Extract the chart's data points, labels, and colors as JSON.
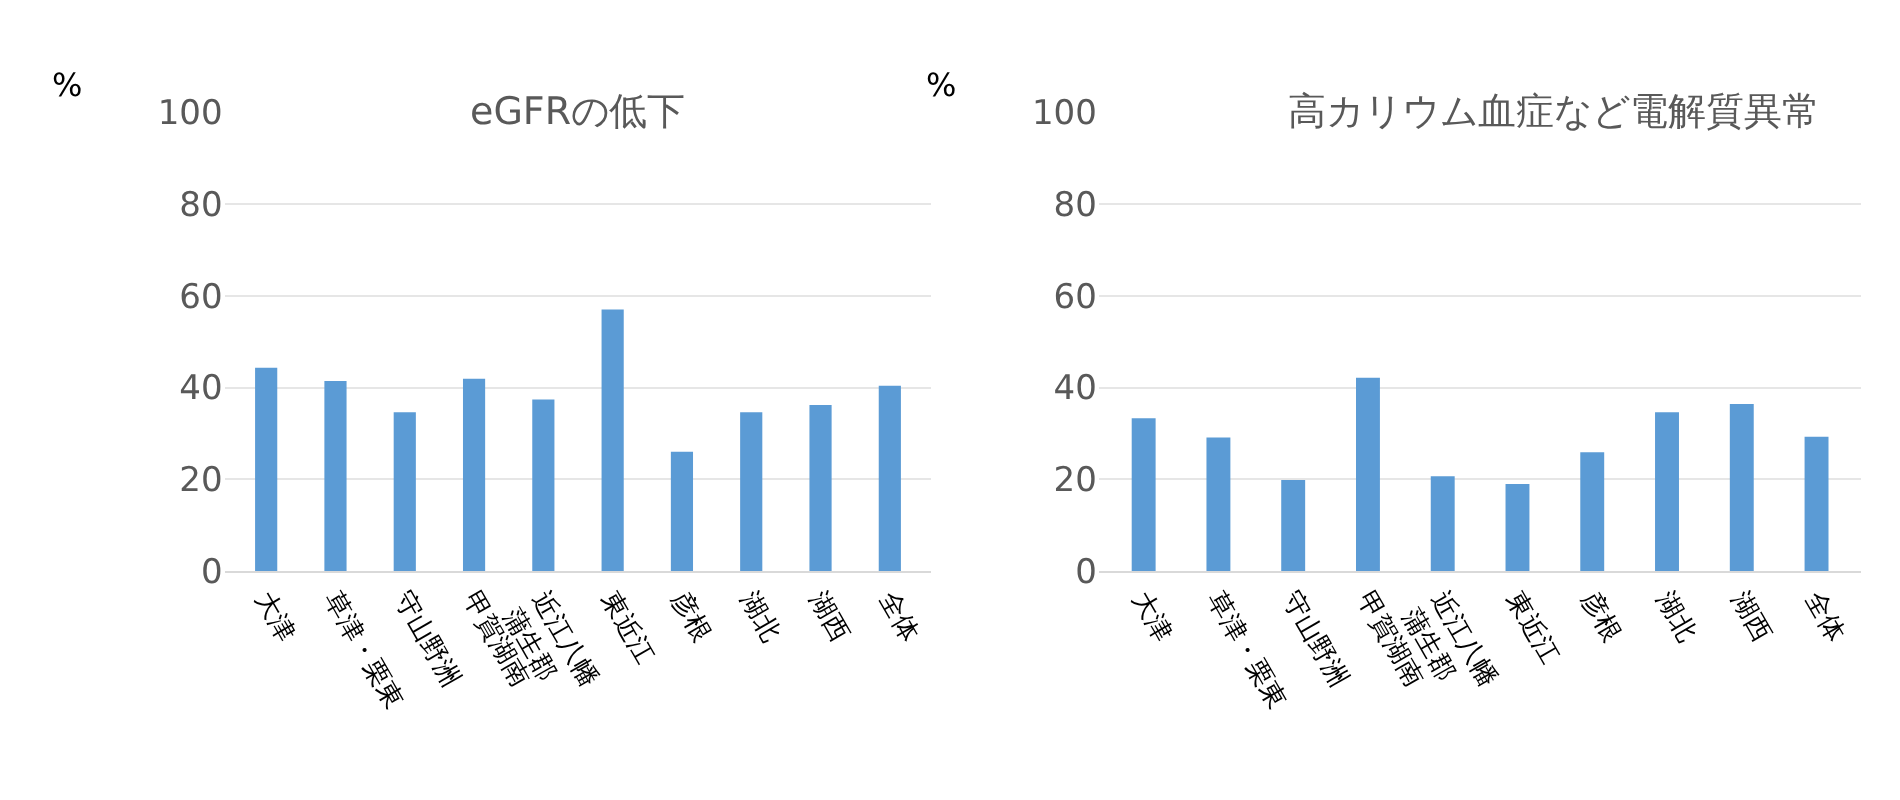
{
  "chart_data": [
    {
      "type": "bar",
      "title": "eGFRの低下",
      "ylabel": "%",
      "categories": [
        "大津",
        "草津・栗東",
        "守山野洲",
        "甲賀湖南",
        "近江八幡\n蒲生郡",
        "東近江",
        "彦根",
        "湖北",
        "湖西",
        "全体"
      ],
      "values": [
        44.3,
        41.4,
        34.6,
        41.9,
        37.4,
        57.0,
        26.0,
        34.6,
        36.2,
        40.4
      ],
      "color": "#5b9bd5",
      "ylim": [
        0,
        100
      ],
      "yticks": [
        0,
        20,
        40,
        60,
        80,
        100
      ],
      "grid": "y"
    },
    {
      "type": "bar",
      "title": "高カリウム血症など電解質異常",
      "ylabel": "%",
      "categories": [
        "大津",
        "草津・栗東",
        "守山野洲",
        "甲賀湖南",
        "近江八幡\n蒲生郡",
        "東近江",
        "彦根",
        "湖北",
        "湖西",
        "全体"
      ],
      "values": [
        33.3,
        29.1,
        19.9,
        42.1,
        20.7,
        19.0,
        25.9,
        34.6,
        36.4,
        29.3
      ],
      "color": "#5b9bd5",
      "ylim": [
        0,
        100
      ],
      "yticks": [
        0,
        20,
        40,
        60,
        80,
        100
      ],
      "grid": "y"
    }
  ]
}
